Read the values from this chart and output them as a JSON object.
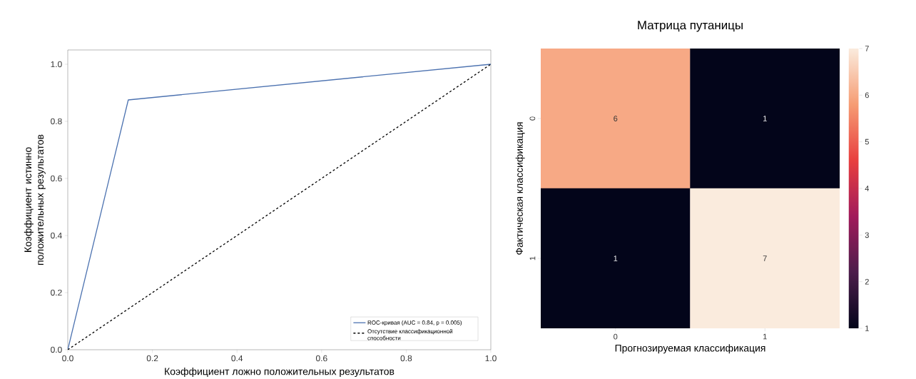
{
  "chart_data": [
    {
      "type": "line",
      "xlabel": "Коэффициент ложно положительных результатов",
      "ylabel": "Коэффициент истинно положительных результатов",
      "xlim": [
        0,
        1
      ],
      "ylim": [
        0,
        1.05
      ],
      "xticks": [
        {
          "value": 0,
          "label": "0.0"
        },
        0.2,
        0.4,
        0.6,
        0.8,
        {
          "value": 1,
          "label": "1.0"
        }
      ],
      "yticks": [
        {
          "value": 0,
          "label": "0.0"
        },
        0.2,
        0.4,
        0.6,
        0.8,
        {
          "value": 1,
          "label": "1.0"
        }
      ],
      "legend": "bottom right",
      "series": [
        {
          "name": "ROC-кривая (AUC = 0.84, p = 0.005)",
          "color": "#4c72b0",
          "x": [
            0,
            0.143,
            1
          ],
          "values": [
            0,
            0.875,
            1
          ],
          "line_style": "solid"
        },
        {
          "name": "Отсутствие классификационной способности",
          "color": "#000000",
          "x": [
            0,
            1
          ],
          "values": [
            0,
            1
          ],
          "line_style": "dashed"
        }
      ]
    },
    {
      "type": "heatmap",
      "title": "Матрица путаницы",
      "xlabel": "Прогнозируемая классификация",
      "ylabel": "Фактическая классификация",
      "categories": [
        "0",
        "1"
      ],
      "y_categories": [
        "0",
        "1"
      ],
      "cells": [
        [
          6,
          1
        ],
        [
          1,
          7
        ]
      ],
      "clim": [
        1,
        7
      ],
      "cticks": [
        1,
        2,
        3,
        4,
        5,
        6,
        7
      ],
      "data_labels": true
    }
  ]
}
